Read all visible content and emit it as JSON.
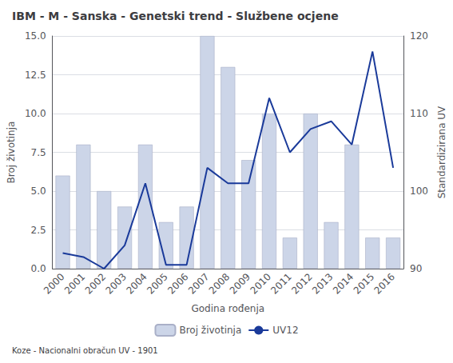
{
  "chart_data": {
    "type": "bar",
    "title": "IBM - M - Sanska - Genetski trend - Službene ocjene",
    "annotations": [
      "Koze - Nacionalni obračun UV - 1901"
    ],
    "x_label": "Godina rođenja",
    "y_label": "Broj životinja",
    "y2_label": "Standardizirana UV",
    "categories": [
      "2000",
      "2001",
      "2002",
      "2003",
      "2004",
      "2005",
      "2006",
      "2007",
      "2008",
      "2009",
      "2010",
      "2011",
      "2012",
      "2013",
      "2014",
      "2015",
      "2016"
    ],
    "series": [
      {
        "name": "Broj životinja",
        "type": "bar",
        "color": "#ccd5e8",
        "values": [
          6,
          8,
          5,
          4,
          8,
          3,
          4,
          15,
          13,
          7,
          10,
          2,
          10,
          3,
          8,
          2,
          2
        ]
      },
      {
        "name": "UV12",
        "type": "line",
        "axis": "y2",
        "color": "#1a3a9a",
        "values": [
          92,
          91.5,
          90,
          93,
          101,
          90.5,
          90.5,
          103,
          101,
          101,
          112,
          105,
          108,
          109,
          106,
          118,
          103
        ]
      }
    ],
    "ylim": [
      0,
      15
    ],
    "yticks": [
      {
        "value": 0,
        "label": "0.0"
      },
      2.5,
      {
        "value": 5,
        "label": "5.0"
      },
      7.5,
      {
        "value": 10,
        "label": "10.0"
      },
      12.5,
      {
        "value": 15,
        "label": "15.0"
      }
    ],
    "y2lim": [
      90,
      120
    ],
    "y2ticks": [
      90,
      100,
      110,
      120
    ],
    "grid": true,
    "legend": "bottom"
  }
}
